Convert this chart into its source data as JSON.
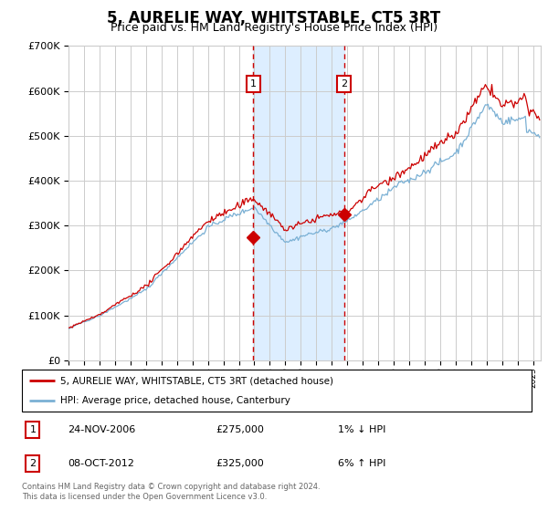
{
  "title": "5, AURELIE WAY, WHITSTABLE, CT5 3RT",
  "subtitle": "Price paid vs. HM Land Registry's House Price Index (HPI)",
  "ylim": [
    0,
    700000
  ],
  "yticks": [
    0,
    100000,
    200000,
    300000,
    400000,
    500000,
    600000,
    700000
  ],
  "ytick_labels": [
    "£0",
    "£100K",
    "£200K",
    "£300K",
    "£400K",
    "£500K",
    "£600K",
    "£700K"
  ],
  "xlim_start": 1995.0,
  "xlim_end": 2025.5,
  "sale1_date": 2006.92,
  "sale1_price": 275000,
  "sale1_label": "1",
  "sale1_info": "24-NOV-2006",
  "sale1_amount": "£275,000",
  "sale1_hpi": "1% ↓ HPI",
  "sale2_date": 2012.78,
  "sale2_price": 325000,
  "sale2_label": "2",
  "sale2_info": "08-OCT-2012",
  "sale2_amount": "£325,000",
  "sale2_hpi": "6% ↑ HPI",
  "line1_color": "#cc0000",
  "line2_color": "#7ab0d4",
  "shade_color": "#ddeeff",
  "marker_box_color": "#cc0000",
  "grid_color": "#cccccc",
  "background_color": "#ffffff",
  "legend_line1": "5, AURELIE WAY, WHITSTABLE, CT5 3RT (detached house)",
  "legend_line2": "HPI: Average price, detached house, Canterbury",
  "footer": "Contains HM Land Registry data © Crown copyright and database right 2024.\nThis data is licensed under the Open Government Licence v3.0.",
  "title_fontsize": 12,
  "subtitle_fontsize": 9
}
